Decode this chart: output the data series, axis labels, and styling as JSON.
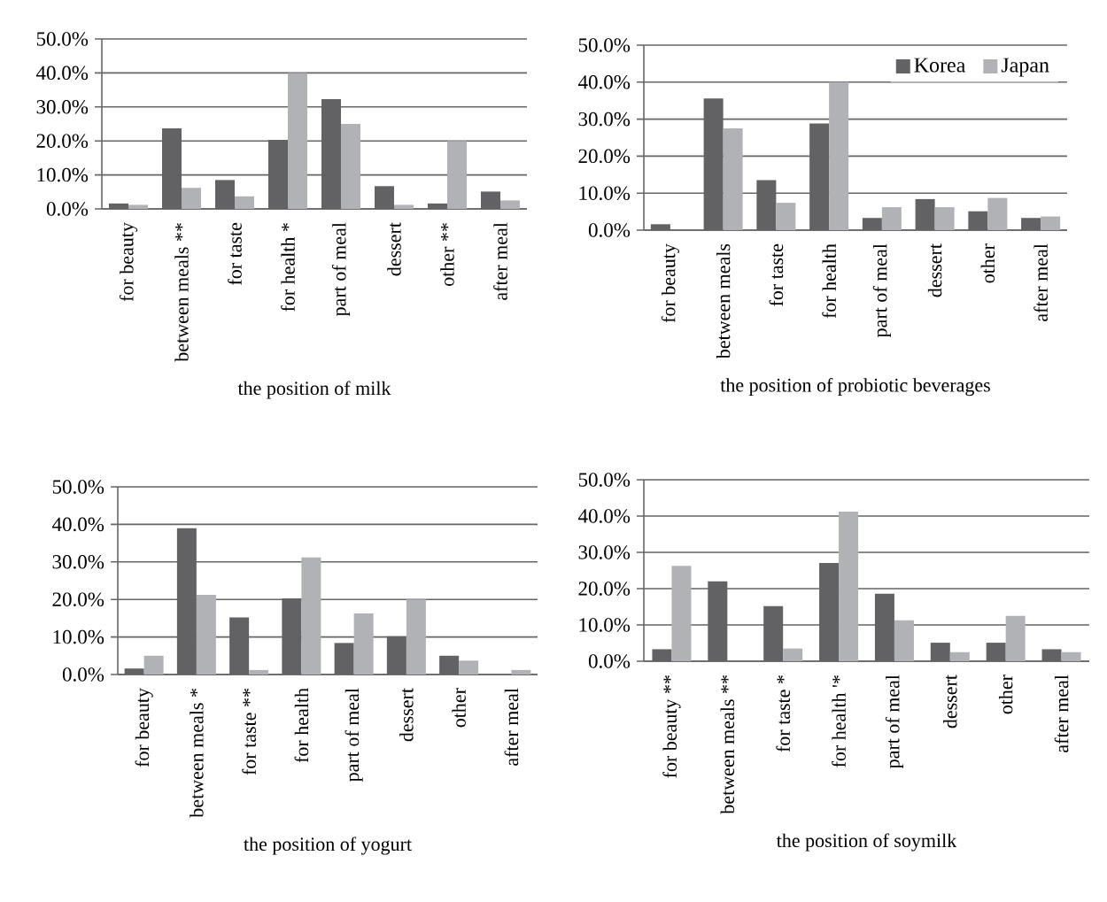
{
  "chart_data": [
    {
      "type": "bar",
      "xlabel": "the position of milk",
      "categories": [
        "for beauty",
        "between meals **",
        "for taste",
        "for health *",
        "part of meal",
        "dessert",
        "other **",
        "after meal"
      ],
      "series": [
        {
          "color": "#626264",
          "values": [
            1.6,
            23.7,
            8.5,
            20.3,
            32.3,
            6.7,
            1.6,
            5.1
          ]
        },
        {
          "color": "#b1b2b6",
          "values": [
            1.2,
            6.2,
            3.7,
            40.0,
            25.0,
            1.2,
            20.0,
            2.5
          ]
        }
      ],
      "ylim": [
        0,
        50
      ],
      "yticks": [
        {
          "value": 0,
          "label": "0.0%"
        },
        {
          "value": 10,
          "label": "10.0%"
        },
        {
          "value": 20,
          "label": "20.0%"
        },
        {
          "value": 30,
          "label": "30.0%"
        },
        {
          "value": 40,
          "label": "40.0%"
        },
        {
          "value": 50,
          "label": "50.0%"
        }
      ],
      "grid": "y"
    },
    {
      "type": "bar",
      "xlabel": "the position of probiotic beverages",
      "categories": [
        "for beauty",
        "between meals",
        "for taste",
        "for health",
        "part of meal",
        "dessert",
        "other",
        "after meal"
      ],
      "series": [
        {
          "name": "Korea",
          "color": "#626264",
          "values": [
            1.6,
            35.6,
            13.5,
            28.8,
            3.3,
            8.4,
            5.1,
            3.3
          ]
        },
        {
          "name": "Japan",
          "color": "#b1b2b6",
          "values": [
            0,
            27.5,
            7.4,
            40.0,
            6.2,
            6.2,
            8.7,
            3.7
          ]
        }
      ],
      "ylim": [
        0,
        50
      ],
      "yticks": [
        {
          "value": 0,
          "label": "0.0%"
        },
        {
          "value": 10,
          "label": "10.0%"
        },
        {
          "value": 20,
          "label": "20.0%"
        },
        {
          "value": 30,
          "label": "30.0%"
        },
        {
          "value": 40,
          "label": "40.0%"
        },
        {
          "value": 50,
          "label": "50.0%"
        }
      ],
      "grid": "y",
      "legend": "top right"
    },
    {
      "type": "bar",
      "xlabel": "the position of yogurt",
      "categories": [
        "for beauty",
        "between meals *",
        "for taste **",
        "for health",
        "part of meal",
        "dessert",
        "other",
        "after meal"
      ],
      "series": [
        {
          "color": "#626264",
          "values": [
            1.6,
            39.0,
            15.2,
            20.3,
            8.4,
            10.2,
            5.0,
            0
          ]
        },
        {
          "color": "#b1b2b6",
          "values": [
            5.0,
            21.2,
            1.2,
            31.2,
            16.3,
            20.0,
            3.7,
            1.2
          ]
        }
      ],
      "ylim": [
        0,
        50
      ],
      "yticks": [
        {
          "value": 0,
          "label": "0.0%"
        },
        {
          "value": 10,
          "label": "10.0%"
        },
        {
          "value": 20,
          "label": "20.0%"
        },
        {
          "value": 30,
          "label": "30.0%"
        },
        {
          "value": 40,
          "label": "40.0%"
        },
        {
          "value": 50,
          "label": "50.0%"
        }
      ],
      "grid": "y"
    },
    {
      "type": "bar",
      "xlabel": "the position of soymilk",
      "categories": [
        "for beauty **",
        "between meals **",
        "for taste *",
        "for health '*",
        "part of meal",
        "dessert",
        "other",
        "after meal"
      ],
      "series": [
        {
          "color": "#626264",
          "values": [
            3.3,
            22.0,
            15.2,
            27.1,
            18.6,
            5.1,
            5.1,
            3.3
          ]
        },
        {
          "color": "#b1b2b6",
          "values": [
            26.3,
            0,
            3.5,
            41.2,
            11.3,
            2.5,
            12.5,
            2.5
          ]
        }
      ],
      "ylim": [
        0,
        50
      ],
      "yticks": [
        {
          "value": 0,
          "label": "0.0%"
        },
        {
          "value": 10,
          "label": "10.0%"
        },
        {
          "value": 20,
          "label": "20.0%"
        },
        {
          "value": 30,
          "label": "30.0%"
        },
        {
          "value": 40,
          "label": "40.0%"
        },
        {
          "value": 50,
          "label": "50.0%"
        }
      ],
      "grid": "y"
    }
  ]
}
